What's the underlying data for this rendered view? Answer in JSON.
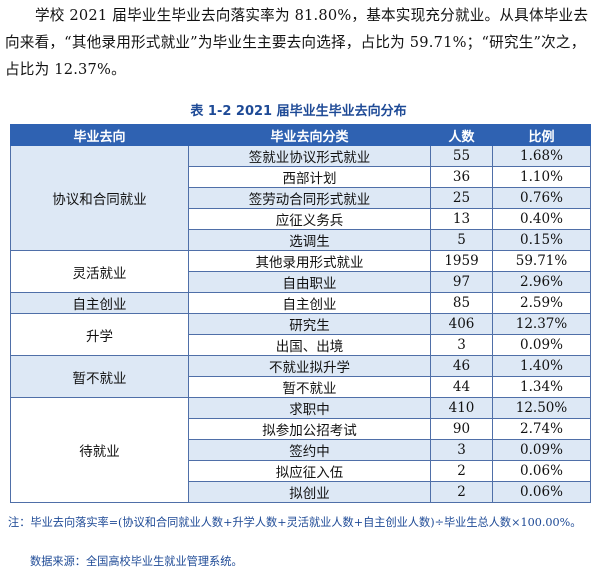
{
  "intro_text": "学校 2021 届毕业生毕业去向落实率为 81.80%，基本实现充分就业。从具体毕业去向来看，“其他录用形式就业”为毕业生主要去向选择，占比为 59.71%；“研究生”次之，占比为 12.37%。",
  "caption": "表 1-2   2021 届毕业生毕业去向分布",
  "headers": [
    "毕业去向",
    "毕业去向分类",
    "人数",
    "比例"
  ],
  "groups": [
    {
      "category": "协议和合同就业",
      "rows": [
        {
          "sub": "签就业协议形式就业",
          "count": "55",
          "pct": "1.68%"
        },
        {
          "sub": "西部计划",
          "count": "36",
          "pct": "1.10%"
        },
        {
          "sub": "签劳动合同形式就业",
          "count": "25",
          "pct": "0.76%"
        },
        {
          "sub": "应征义务兵",
          "count": "13",
          "pct": "0.40%"
        },
        {
          "sub": "选调生",
          "count": "5",
          "pct": "0.15%"
        }
      ]
    },
    {
      "category": "灵活就业",
      "rows": [
        {
          "sub": "其他录用形式就业",
          "count": "1959",
          "pct": "59.71%"
        },
        {
          "sub": "自由职业",
          "count": "97",
          "pct": "2.96%"
        }
      ]
    },
    {
      "category": "自主创业",
      "rows": [
        {
          "sub": "自主创业",
          "count": "85",
          "pct": "2.59%"
        }
      ]
    },
    {
      "category": "升学",
      "rows": [
        {
          "sub": "研究生",
          "count": "406",
          "pct": "12.37%"
        },
        {
          "sub": "出国、出境",
          "count": "3",
          "pct": "0.09%"
        }
      ]
    },
    {
      "category": "暂不就业",
      "rows": [
        {
          "sub": "不就业拟升学",
          "count": "46",
          "pct": "1.40%"
        },
        {
          "sub": "暂不就业",
          "count": "44",
          "pct": "1.34%"
        }
      ]
    },
    {
      "category": "待就业",
      "rows": [
        {
          "sub": "求职中",
          "count": "410",
          "pct": "12.50%"
        },
        {
          "sub": "拟参加公招考试",
          "count": "90",
          "pct": "2.74%"
        },
        {
          "sub": "签约中",
          "count": "3",
          "pct": "0.09%"
        },
        {
          "sub": "拟应征入伍",
          "count": "2",
          "pct": "0.06%"
        },
        {
          "sub": "拟创业",
          "count": "2",
          "pct": "0.06%"
        }
      ]
    }
  ],
  "note": "注：毕业去向落实率=(协议和合同就业人数+升学人数+灵活就业人数+自主创业人数)÷毕业生总人数×100.00%。",
  "source": "数据来源：全国高校毕业生就业管理系统。",
  "colors": {
    "header_bg": "#2f62b2",
    "stripe": "#dde8f5",
    "accent_text": "#1e4a96"
  }
}
